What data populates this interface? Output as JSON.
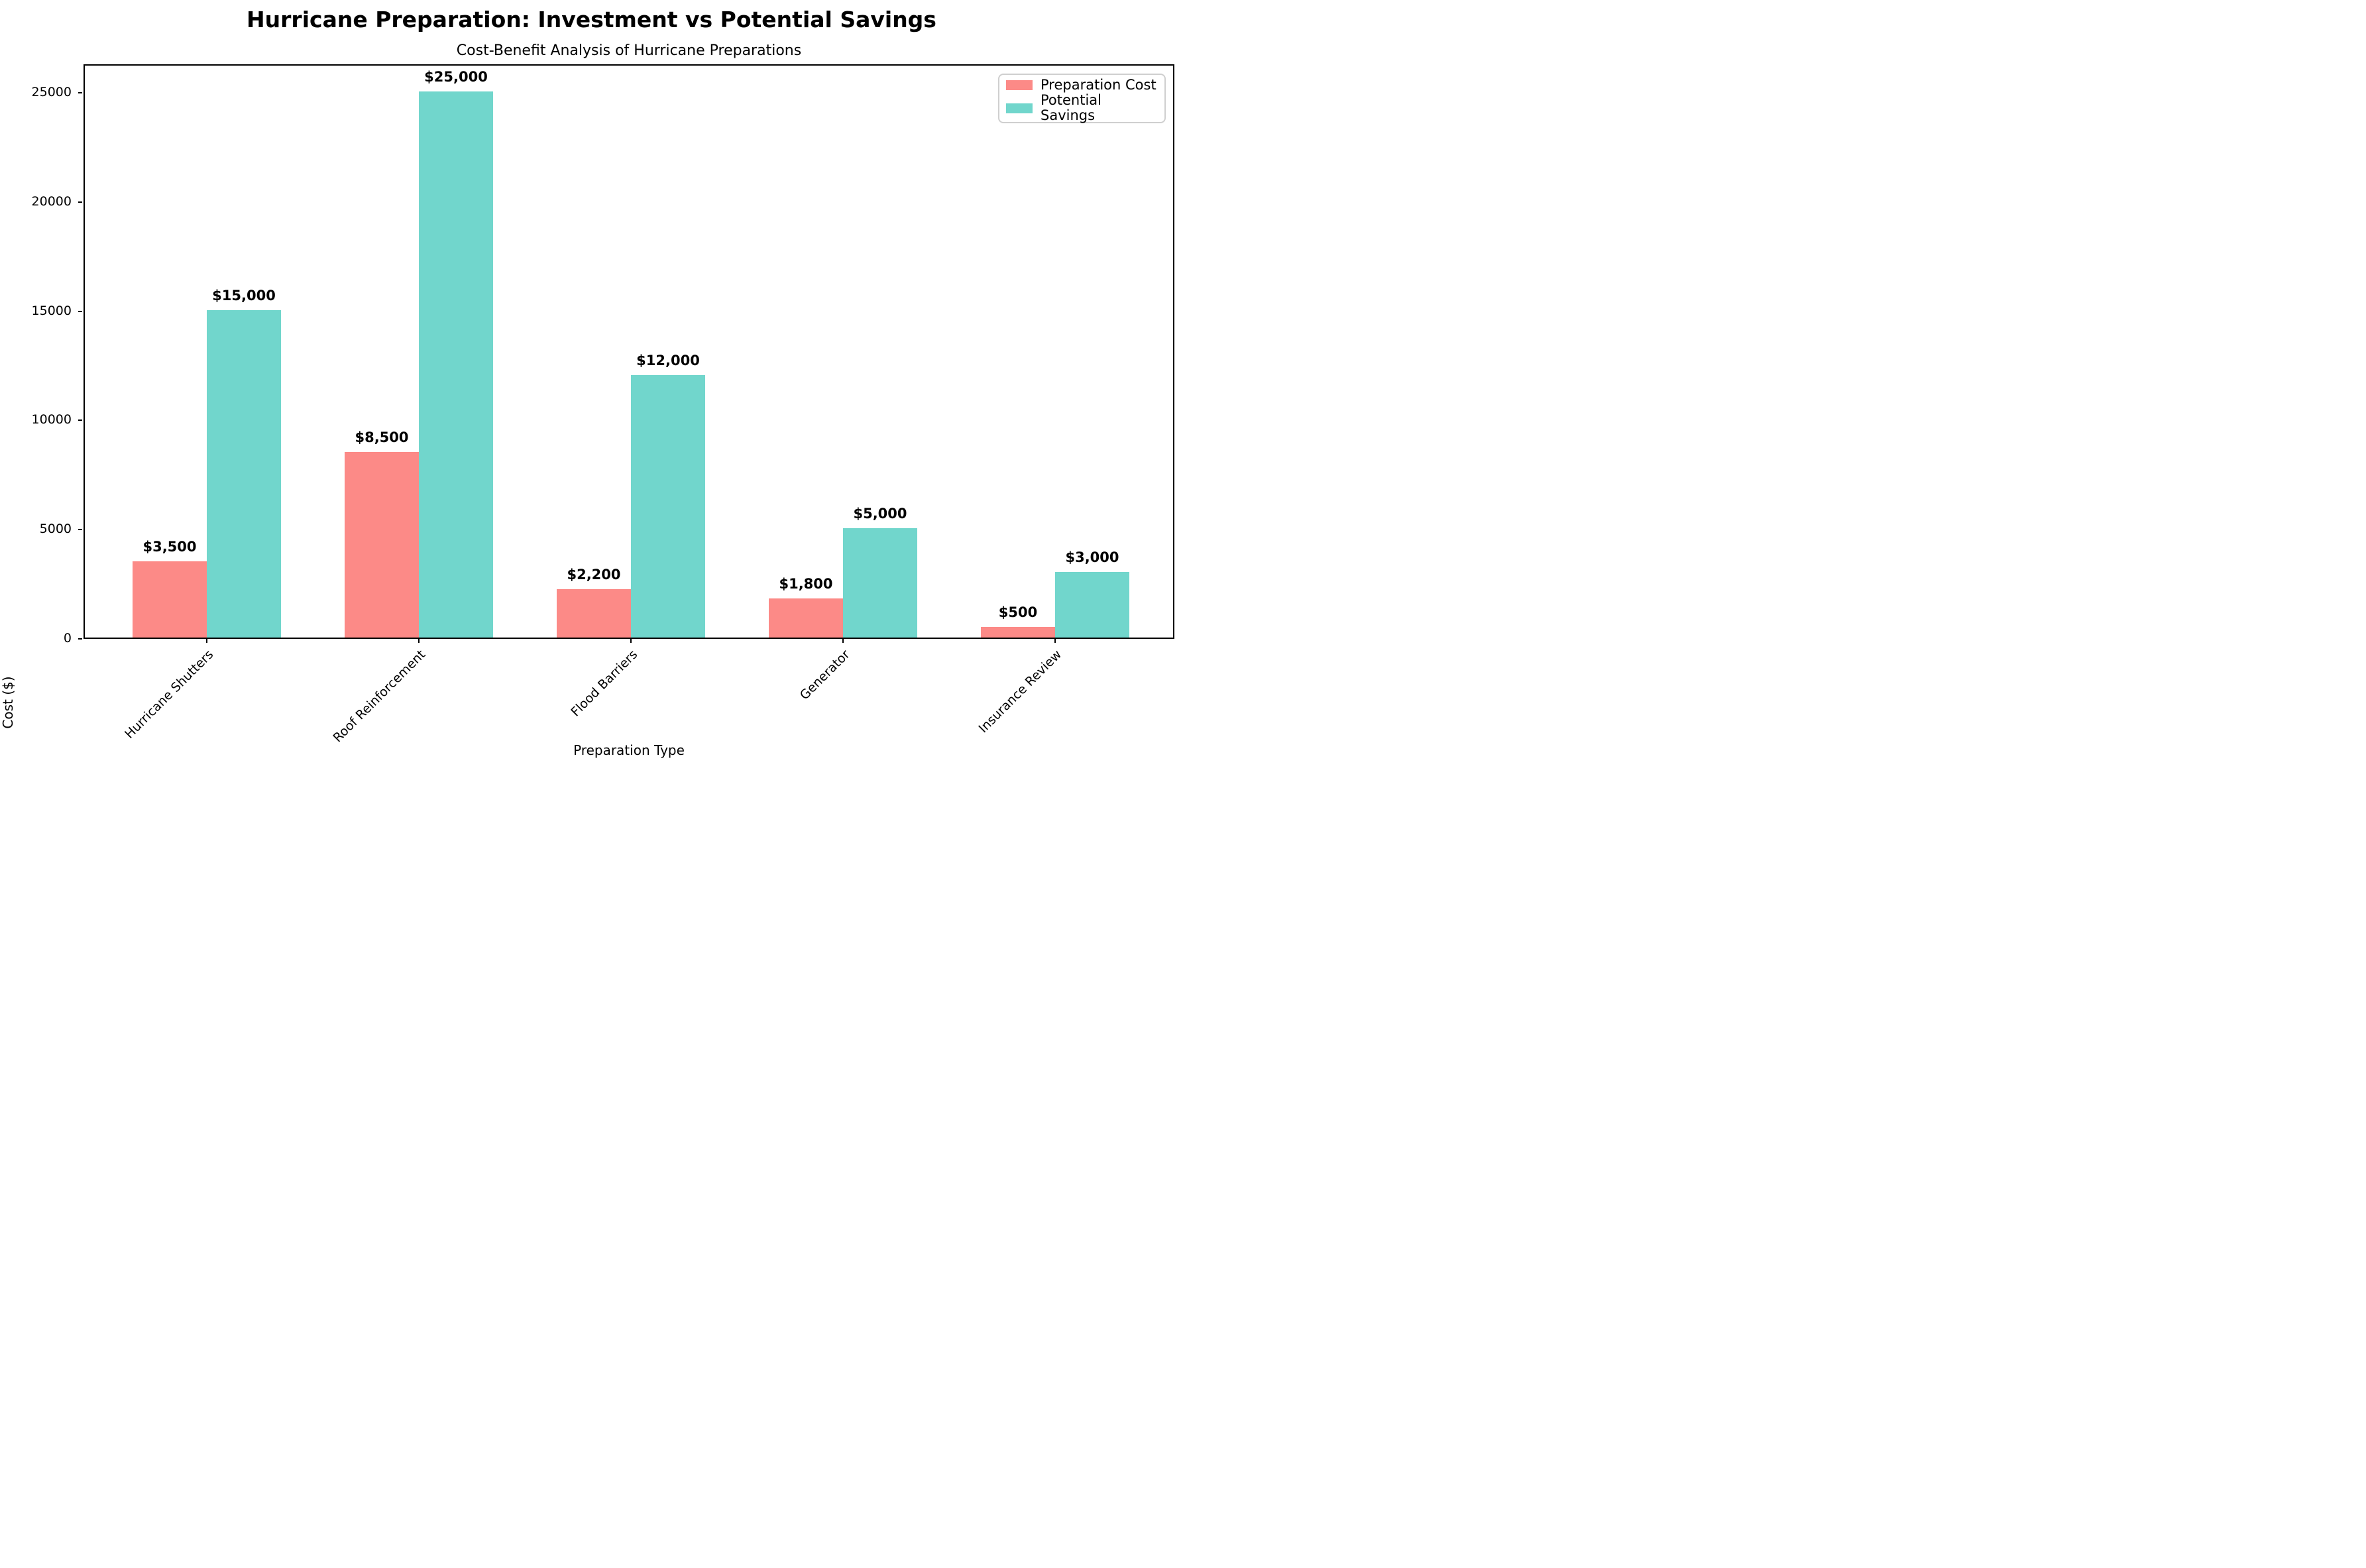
{
  "figure": {
    "suptitle": "Hurricane Preparation: Investment vs Potential Savings",
    "axes_title": "Cost-Benefit Analysis of Hurricane Preparations",
    "xlabel": "Preparation Type",
    "ylabel": "Cost ($)",
    "background_color": "#ffffff"
  },
  "legend": {
    "position": "upper right",
    "items": [
      {
        "label": "Preparation Cost",
        "color": "#FC8A87"
      },
      {
        "label": "Potential Savings",
        "color": "#71D6CC"
      }
    ]
  },
  "chart_data": {
    "type": "bar",
    "suptitle": "Hurricane Preparation: Investment vs Potential Savings",
    "title": "Cost-Benefit Analysis of Hurricane Preparations",
    "xlabel": "Preparation Type",
    "ylabel": "Cost ($)",
    "categories": [
      "Hurricane Shutters",
      "Roof Reinforcement",
      "Flood Barriers",
      "Generator",
      "Insurance Review"
    ],
    "series": [
      {
        "name": "Preparation Cost",
        "color": "#FC8A87",
        "values": [
          3500,
          8500,
          2200,
          1800,
          500
        ],
        "value_labels": [
          "$3,500",
          "$8,500",
          "$2,200",
          "$1,800",
          "$500"
        ]
      },
      {
        "name": "Potential Savings",
        "color": "#71D6CC",
        "values": [
          15000,
          25000,
          12000,
          5000,
          3000
        ],
        "value_labels": [
          "$15,000",
          "$25,000",
          "$12,000",
          "$5,000",
          "$3,000"
        ]
      }
    ],
    "ylim": [
      0,
      26300
    ],
    "yticks": [
      0,
      5000,
      10000,
      15000,
      20000,
      25000
    ],
    "ytick_labels": [
      "0",
      "5000",
      "10000",
      "15000",
      "20000",
      "25000"
    ],
    "xtick_rotation_deg": 45,
    "grid": false,
    "legend_position": "upper right",
    "bar_value_label_weight": "bold"
  }
}
